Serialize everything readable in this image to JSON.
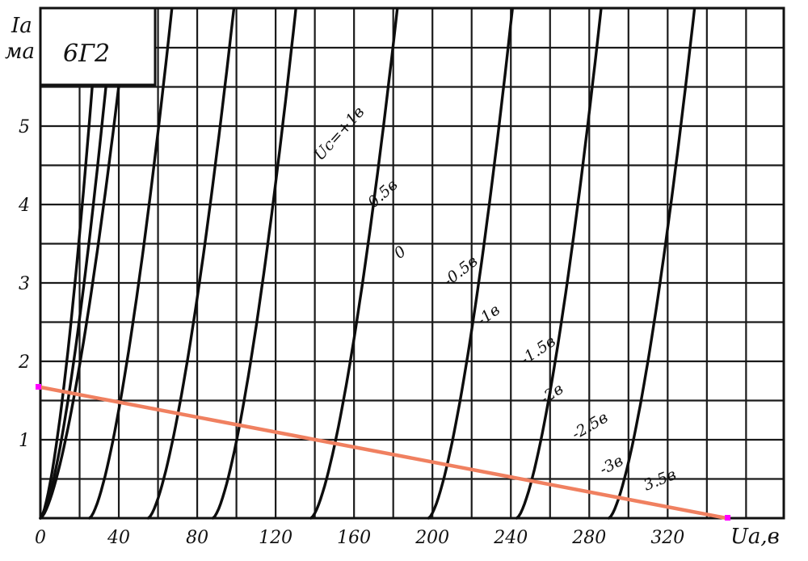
{
  "chart_data": {
    "type": "line",
    "title": "6Г2",
    "xlabel": "Ua,в",
    "ylabel": "Ia, ма",
    "xlim": [
      0,
      380
    ],
    "ylim": [
      0,
      6.5
    ],
    "x_ticks": [
      "0",
      "40",
      "80",
      "120",
      "160",
      "200",
      "240",
      "280",
      "320"
    ],
    "y_ticks": [
      "1",
      "2",
      "3",
      "4",
      "5"
    ],
    "grid": true,
    "series": [
      {
        "name": "Uc=+1в",
        "label": "Uc=+1в",
        "cutoff": 0,
        "scale": 0.0405
      },
      {
        "name": "0.5в",
        "label": "0.5в",
        "cutoff": 0,
        "scale": 0.0285
      },
      {
        "name": "0",
        "label": "0",
        "cutoff": 0,
        "scale": 0.0218
      },
      {
        "name": "-0.5в",
        "label": "-0.5в",
        "cutoff": 25,
        "scale": 0.0238
      },
      {
        "name": "-1в",
        "label": "-1в",
        "cutoff": 55,
        "scale": 0.0225
      },
      {
        "name": "-1.5в",
        "label": "-1.5в",
        "cutoff": 88,
        "scale": 0.0236
      },
      {
        "name": "-2в",
        "label": "-2в",
        "cutoff": 138,
        "scale": 0.0222
      },
      {
        "name": "-2.5в",
        "label": "-2.5в",
        "cutoff": 198,
        "scale": 0.0232
      },
      {
        "name": "-3в",
        "label": "-3в",
        "cutoff": 243,
        "scale": 0.023
      },
      {
        "name": "3.5в",
        "label": "3.5в",
        "cutoff": 290,
        "scale": 0.0225
      }
    ],
    "load_line": {
      "points": [
        [
          0,
          1.67
        ],
        [
          350,
          0
        ]
      ],
      "color": "#f08060",
      "marker_color": "#ff00ff"
    }
  }
}
